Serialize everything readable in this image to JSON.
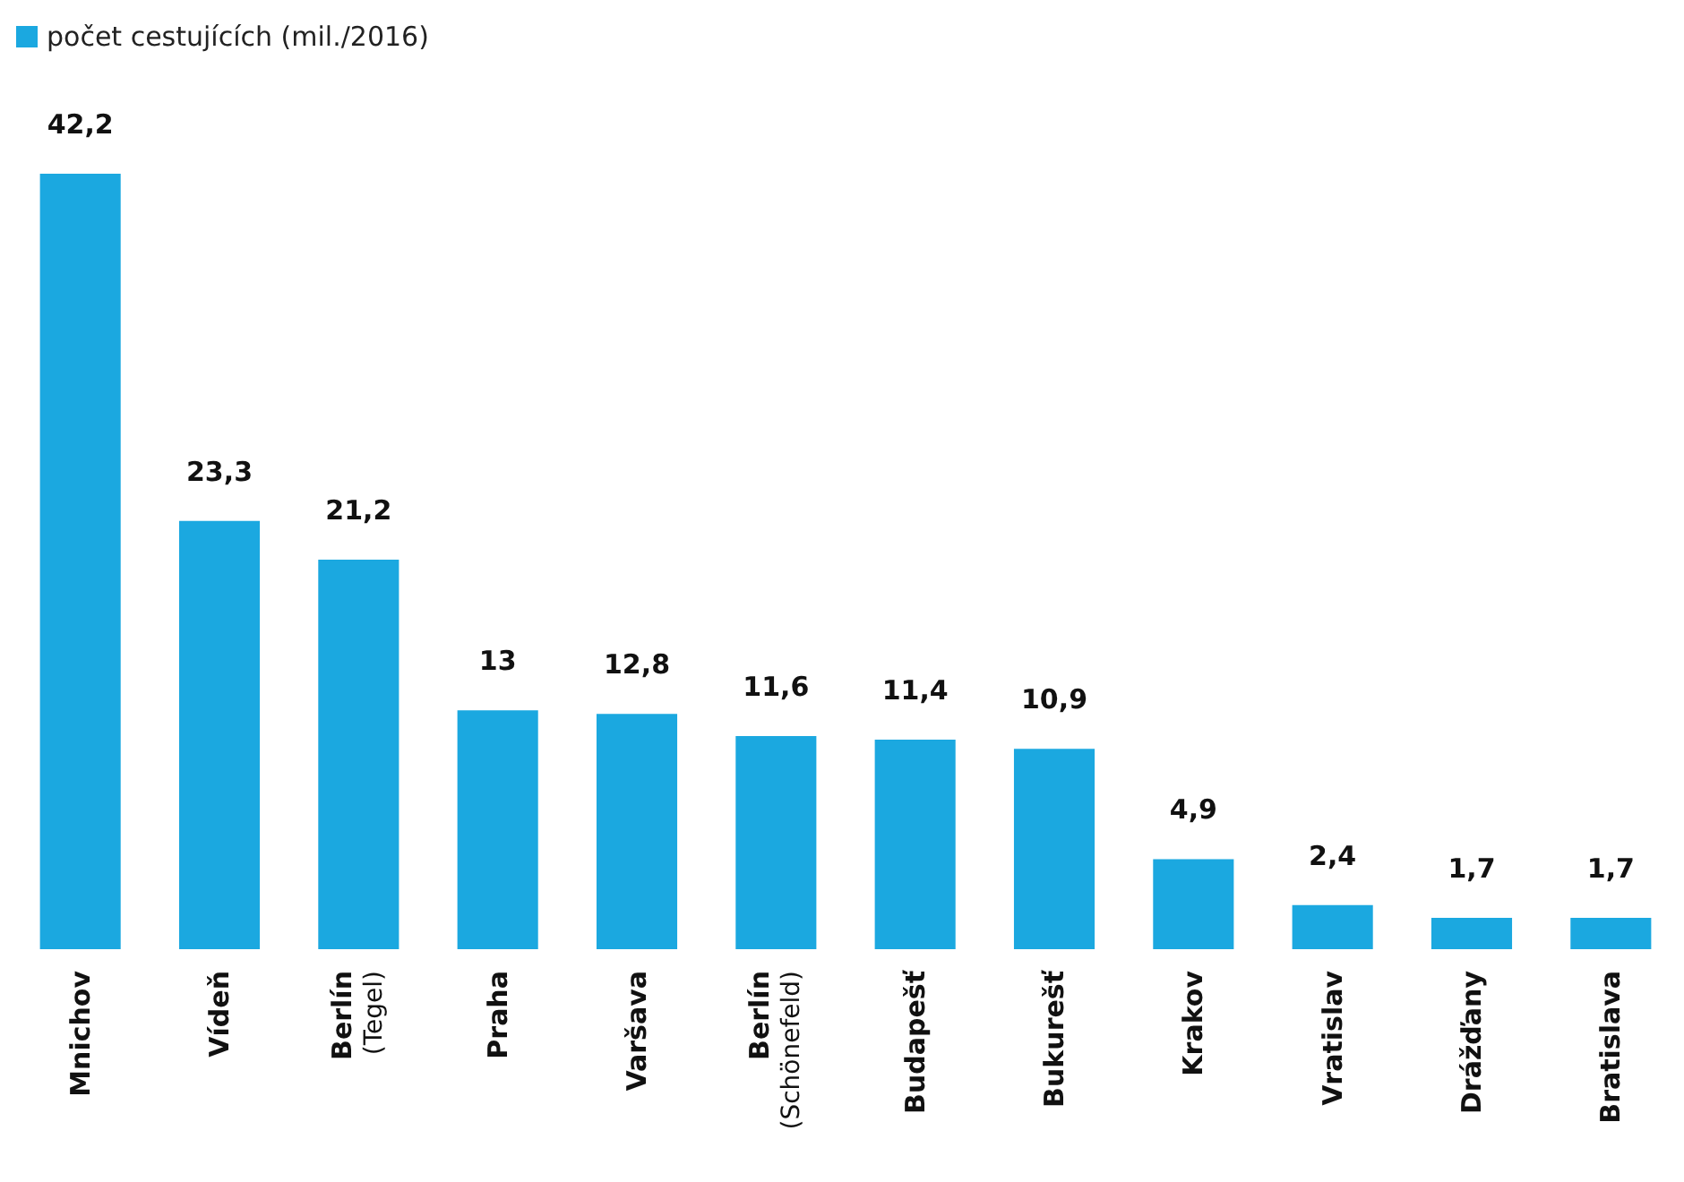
{
  "chart_data": {
    "type": "bar",
    "categories": [
      "Mnichov",
      "Vídeň",
      "Berlín (Tegel)",
      "Praha",
      "Varšava",
      "Berlín (Schönefeld)",
      "Budapešť",
      "Bukurešť",
      "Krakov",
      "Vratislav",
      "Drážďany",
      "Bratislava"
    ],
    "series": [
      {
        "name": "počet cestujících (mil./2016)",
        "color": "#1ba8e0",
        "values": [
          42.2,
          23.3,
          21.2,
          13,
          12.8,
          11.6,
          11.4,
          10.9,
          4.9,
          2.4,
          1.7,
          1.7
        ],
        "value_labels": [
          "42,2",
          "23,3",
          "21,2",
          "13",
          "12,8",
          "11,6",
          "11,4",
          "10,9",
          "4,9",
          "2,4",
          "1,7",
          "1,7"
        ]
      }
    ],
    "legend": "top left",
    "grid": false
  }
}
